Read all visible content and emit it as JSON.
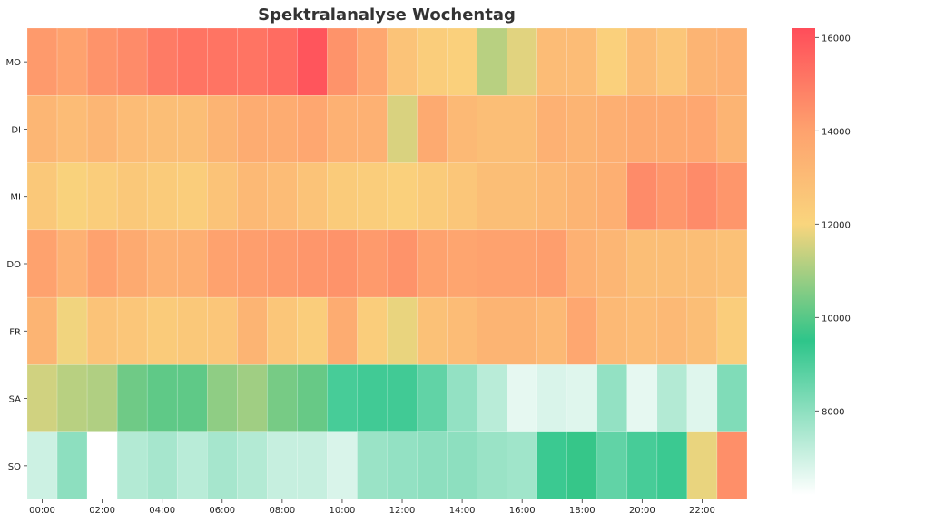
{
  "chart_data": {
    "type": "heatmap",
    "title": "Spektralanalyse Wochentag",
    "xlabel": "",
    "ylabel": "",
    "rows": [
      "MO",
      "DI",
      "MI",
      "DO",
      "FR",
      "SA",
      "SO"
    ],
    "columns": [
      "00:00",
      "01:00",
      "02:00",
      "03:00",
      "04:00",
      "05:00",
      "06:00",
      "07:00",
      "08:00",
      "09:00",
      "10:00",
      "11:00",
      "12:00",
      "13:00",
      "14:00",
      "15:00",
      "16:00",
      "17:00",
      "18:00",
      "19:00",
      "20:00",
      "21:00",
      "22:00",
      "23:00"
    ],
    "x_tick_labels": [
      "00:00",
      "02:00",
      "04:00",
      "06:00",
      "08:00",
      "10:00",
      "12:00",
      "14:00",
      "16:00",
      "18:00",
      "20:00",
      "22:00"
    ],
    "values": [
      [
        14200,
        14000,
        14400,
        14600,
        15000,
        15200,
        15200,
        15200,
        15400,
        16000,
        14400,
        13800,
        12700,
        12300,
        12200,
        11200,
        11700,
        13000,
        13000,
        12200,
        13000,
        12600,
        13300,
        13400
      ],
      [
        13200,
        13000,
        13200,
        13000,
        12900,
        12900,
        13300,
        13600,
        13600,
        13800,
        13400,
        13400,
        11600,
        13700,
        13100,
        12900,
        12900,
        13400,
        13300,
        13500,
        13700,
        13700,
        13800,
        13300
      ],
      [
        12500,
        12100,
        12300,
        12500,
        12400,
        12300,
        12700,
        13100,
        13000,
        12700,
        12400,
        12300,
        12200,
        12400,
        12600,
        12900,
        12900,
        13100,
        13300,
        13500,
        14600,
        14300,
        14600,
        14300
      ],
      [
        14000,
        13400,
        14000,
        13700,
        13400,
        13500,
        14000,
        14100,
        14200,
        14300,
        14400,
        14200,
        14400,
        14000,
        13900,
        14000,
        14000,
        14100,
        13400,
        13200,
        12900,
        12900,
        12900,
        12800
      ],
      [
        13300,
        11900,
        12700,
        12600,
        12400,
        12500,
        12600,
        13300,
        12600,
        12300,
        13600,
        12300,
        11800,
        12800,
        13000,
        13300,
        13300,
        13100,
        13800,
        13100,
        13000,
        13100,
        12900,
        12300
      ],
      [
        11500,
        11200,
        11100,
        10300,
        10100,
        10100,
        10700,
        10900,
        10400,
        10200,
        9100,
        9200,
        9200,
        8700,
        7900,
        7300,
        6600,
        6800,
        6700,
        7900,
        6600,
        7400,
        6700,
        8200
      ],
      [
        7000,
        8000,
        6000,
        7400,
        7600,
        7300,
        7600,
        7400,
        7100,
        7100,
        6800,
        7800,
        7900,
        8000,
        8000,
        7800,
        7700,
        9300,
        9600,
        8700,
        9100,
        9300,
        11800,
        14500
      ]
    ],
    "colorbar": {
      "min": 6200,
      "max": 16200,
      "ticks": [
        8000,
        10000,
        12000,
        14000,
        16000
      ],
      "tick_labels": [
        "8000",
        "10000",
        "12000",
        "14000",
        "16000"
      ],
      "colors": [
        "#ffffff",
        "#2ec58a",
        "#f9d57d",
        "#fea26e",
        "#ff4d5a"
      ],
      "color_stops": [
        0.0,
        0.33,
        0.58,
        0.78,
        1.0
      ]
    }
  }
}
